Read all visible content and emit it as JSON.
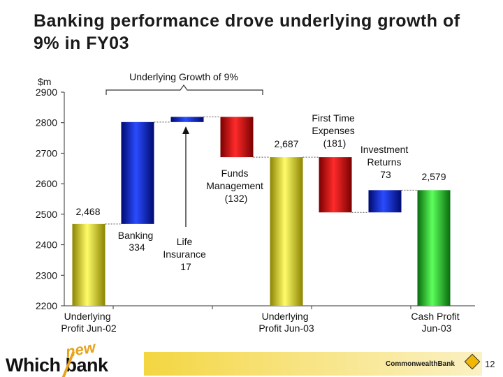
{
  "slide": {
    "title": "Banking performance drove underlying growth of 9% in FY03",
    "page_number": "12",
    "logo_text": "Which",
    "logo_text2": "bank",
    "logo_new": "new",
    "brand_text": "CommonwealthBank"
  },
  "colors": {
    "yellow": "#d9d000",
    "blue": "#0a1ec8",
    "red": "#e00000",
    "green": "#12c41a"
  },
  "chart_data": {
    "type": "bar",
    "subtype": "waterfall",
    "unit_label": "$m",
    "ylim": [
      2200,
      2900
    ],
    "yticks": [
      2200,
      2300,
      2400,
      2500,
      2600,
      2700,
      2800,
      2900
    ],
    "bracket_label": "Underlying Growth of 9%",
    "bars": [
      {
        "start": 2200,
        "end": 2468,
        "color": "yellow",
        "value_label": "2,468",
        "name": "Underlying Profit Jun-02"
      },
      {
        "start": 2468,
        "end": 2802,
        "color": "blue",
        "value_label": "334",
        "name": "Banking"
      },
      {
        "start": 2802,
        "end": 2819,
        "color": "blue",
        "value_label": "17",
        "name": "Life Insurance"
      },
      {
        "start": 2819,
        "end": 2687,
        "color": "red",
        "value_label": "(132)",
        "name": "Funds Management"
      },
      {
        "start": 2200,
        "end": 2687,
        "color": "yellow",
        "value_label": "2,687",
        "name": "Underlying Profit Jun-03"
      },
      {
        "start": 2687,
        "end": 2506,
        "color": "red",
        "value_label": "(181)",
        "name": "First Time Expenses"
      },
      {
        "start": 2506,
        "end": 2579,
        "color": "blue",
        "value_label": "73",
        "name": "Investment Returns"
      },
      {
        "start": 2200,
        "end": 2579,
        "color": "green",
        "value_label": "2,579",
        "name": "Cash Profit Jun-03"
      }
    ],
    "category_labels": [
      {
        "line1": "Underlying",
        "line2": "Profit Jun-02"
      },
      {
        "line1": "Underlying",
        "line2": "Profit Jun-03"
      },
      {
        "line1": "Cash Profit",
        "line2": "Jun-03"
      }
    ],
    "annotations": [
      {
        "lines": [
          "Banking",
          "334"
        ]
      },
      {
        "lines": [
          "Life",
          "Insurance",
          "17"
        ]
      },
      {
        "lines": [
          "Funds",
          "Management",
          "(132)"
        ]
      },
      {
        "lines": [
          "First Time",
          "Expenses",
          "(181)"
        ]
      },
      {
        "lines": [
          "Investment",
          "Returns",
          "73"
        ]
      }
    ]
  }
}
